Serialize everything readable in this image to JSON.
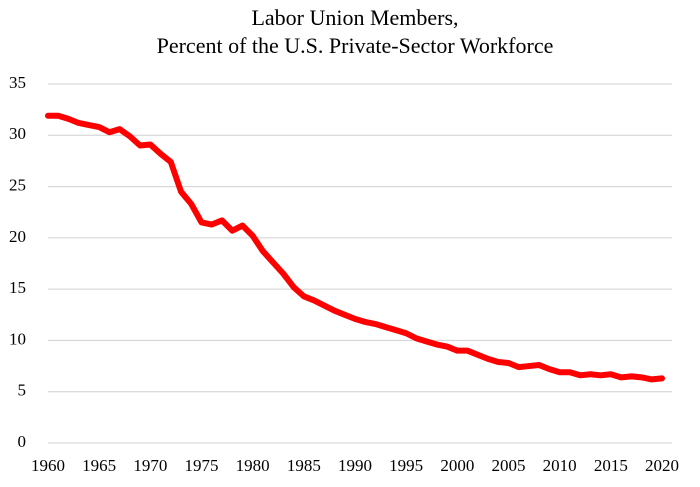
{
  "chart_data": {
    "type": "line",
    "title": [
      "Labor Union Members,",
      "Percent of the U.S. Private-Sector Workforce"
    ],
    "x": [
      1960,
      1961,
      1962,
      1963,
      1964,
      1965,
      1966,
      1967,
      1968,
      1969,
      1970,
      1971,
      1972,
      1973,
      1974,
      1975,
      1976,
      1977,
      1978,
      1979,
      1980,
      1981,
      1982,
      1983,
      1984,
      1985,
      1986,
      1987,
      1988,
      1989,
      1990,
      1991,
      1992,
      1993,
      1994,
      1995,
      1996,
      1997,
      1998,
      1999,
      2000,
      2001,
      2002,
      2003,
      2004,
      2005,
      2006,
      2007,
      2008,
      2009,
      2010,
      2011,
      2012,
      2013,
      2014,
      2015,
      2016,
      2017,
      2018,
      2019,
      2020
    ],
    "series": [
      {
        "color": "#ff0000",
        "values": [
          31.9,
          31.9,
          31.6,
          31.2,
          31.0,
          30.8,
          30.3,
          30.6,
          29.9,
          29.0,
          29.1,
          28.2,
          27.4,
          24.5,
          23.3,
          21.5,
          21.3,
          21.7,
          20.7,
          21.2,
          20.2,
          18.7,
          17.6,
          16.5,
          15.2,
          14.3,
          13.9,
          13.4,
          12.9,
          12.5,
          12.1,
          11.8,
          11.6,
          11.3,
          11.0,
          10.7,
          10.2,
          9.9,
          9.6,
          9.4,
          9.0,
          9.0,
          8.6,
          8.2,
          7.9,
          7.8,
          7.4,
          7.5,
          7.6,
          7.2,
          6.9,
          6.9,
          6.6,
          6.7,
          6.6,
          6.7,
          6.4,
          6.5,
          6.4,
          6.2,
          6.3
        ]
      }
    ],
    "xlim": [
      1960,
      2020
    ],
    "xticks": [
      1960,
      1965,
      1970,
      1975,
      1980,
      1985,
      1990,
      1995,
      2000,
      2005,
      2010,
      2015,
      2020
    ],
    "ylim": [
      0,
      35
    ],
    "yticks": [
      0,
      5,
      10,
      15,
      20,
      25,
      30,
      35
    ],
    "grid": true
  }
}
